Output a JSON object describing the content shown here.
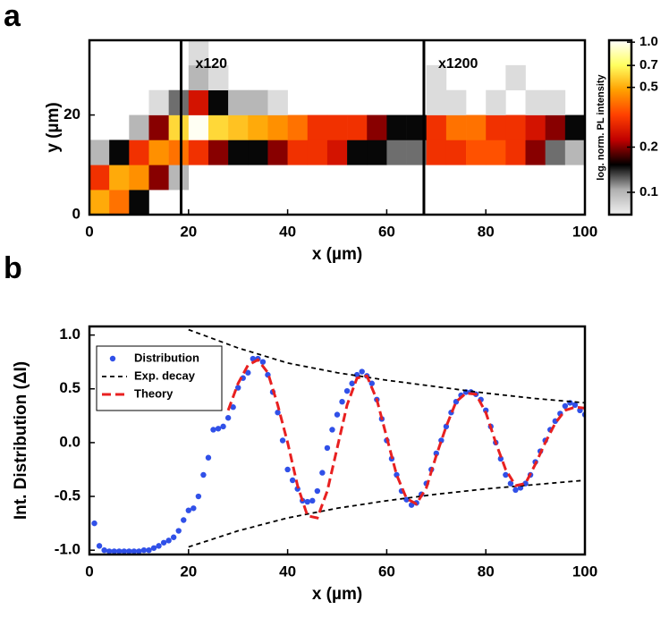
{
  "chart_data": [
    {
      "type": "heatmap",
      "panel": "a",
      "xlabel": "x (µm)",
      "ylabel": "y (µm)",
      "xlim": [
        0,
        100
      ],
      "ylim": [
        0,
        35
      ],
      "xticks": [
        0,
        20,
        40,
        60,
        80,
        100
      ],
      "yticks": [
        0,
        20
      ],
      "x": [
        2,
        6,
        10,
        14,
        18,
        22,
        26,
        30,
        34,
        38,
        42,
        46,
        50,
        54,
        58,
        62,
        66,
        70,
        74,
        78,
        82,
        86,
        90,
        94,
        98
      ],
      "y": [
        2.5,
        7.5,
        12.5,
        17.5,
        22.5,
        27.5,
        32.5
      ],
      "values": [
        [
          0.5,
          0.4,
          0.15,
          null,
          null,
          null,
          null,
          null,
          null,
          null,
          null,
          null,
          null,
          null,
          null,
          null,
          null,
          null,
          null,
          null,
          null,
          null,
          null,
          null,
          null
        ],
        [
          0.3,
          0.5,
          0.45,
          0.2,
          0.1,
          null,
          null,
          null,
          null,
          null,
          null,
          null,
          null,
          null,
          null,
          null,
          null,
          null,
          null,
          null,
          null,
          null,
          null,
          null,
          null
        ],
        [
          0.1,
          0.15,
          0.3,
          0.45,
          0.4,
          0.3,
          0.2,
          0.15,
          0.15,
          0.2,
          0.3,
          0.3,
          0.25,
          0.15,
          0.15,
          0.12,
          0.12,
          0.3,
          0.3,
          0.35,
          0.35,
          0.3,
          0.2,
          0.12,
          0.1
        ],
        [
          null,
          null,
          0.1,
          0.2,
          0.6,
          1.0,
          0.6,
          0.55,
          0.5,
          0.45,
          0.4,
          0.3,
          0.3,
          0.3,
          0.2,
          0.15,
          0.15,
          0.3,
          0.4,
          0.4,
          0.3,
          0.3,
          0.25,
          0.2,
          0.15
        ],
        [
          null,
          null,
          null,
          0.08,
          0.12,
          0.25,
          0.15,
          0.1,
          0.1,
          0.08,
          null,
          null,
          null,
          null,
          null,
          null,
          null,
          0.08,
          0.08,
          null,
          0.08,
          null,
          0.08,
          0.08,
          null
        ],
        [
          null,
          null,
          null,
          null,
          null,
          0.1,
          0.08,
          null,
          null,
          null,
          null,
          null,
          null,
          null,
          null,
          null,
          null,
          0.08,
          null,
          null,
          null,
          0.08,
          null,
          null,
          null
        ],
        [
          null,
          null,
          null,
          null,
          null,
          0.08,
          null,
          null,
          null,
          null,
          null,
          null,
          null,
          null,
          null,
          null,
          null,
          null,
          null,
          null,
          null,
          null,
          null,
          null,
          null
        ]
      ],
      "colorbar": {
        "label": "log. norm. PL intensity",
        "log": true,
        "clim": [
          0.071,
          1.03
        ],
        "ticks": [
          0.1,
          0.2,
          0.5,
          0.7,
          {
            "value": 1,
            "label": "1.0"
          }
        ],
        "colormap": [
          "#f0f0f0",
          "#b0b0b0",
          "#000000",
          "#c00000",
          "#ff4000",
          "#ffa000",
          "#ffff60",
          "#ffffff"
        ]
      },
      "annotations": [
        {
          "text": "x120",
          "x": 18.5
        },
        {
          "text": "x1200",
          "x": 67.5
        }
      ]
    },
    {
      "type": "line",
      "panel": "b",
      "xlabel": "x (µm)",
      "ylabel": "Int. Distribution (ΔI)",
      "xlim": [
        0,
        100
      ],
      "ylim": [
        -1.04,
        1.08
      ],
      "xticks": [
        0,
        20,
        40,
        60,
        80,
        100
      ],
      "yticks": [
        {
          "value": -1,
          "label": "-1.0"
        },
        -0.5,
        {
          "value": 0,
          "label": "0.0"
        },
        0.5,
        {
          "value": 1,
          "label": "1.0"
        }
      ],
      "legend": "upper left",
      "series": [
        {
          "name": "Distribution",
          "color": "#3050e8",
          "style": "markers",
          "x": [
            1,
            2,
            3,
            4,
            5,
            6,
            7,
            8,
            9,
            10,
            11,
            12,
            13,
            14,
            15,
            16,
            17,
            18,
            19,
            20,
            21,
            22,
            23,
            24,
            25,
            26,
            27,
            28,
            29,
            30,
            31,
            32,
            33,
            34,
            35,
            36,
            37,
            38,
            39,
            40,
            41,
            42,
            43,
            44,
            45,
            46,
            47,
            48,
            49,
            50,
            51,
            52,
            53,
            54,
            55,
            56,
            57,
            58,
            59,
            60,
            61,
            62,
            63,
            64,
            65,
            66,
            67,
            68,
            69,
            70,
            71,
            72,
            73,
            74,
            75,
            76,
            77,
            78,
            79,
            80,
            81,
            82,
            83,
            84,
            85,
            86,
            87,
            88,
            89,
            90,
            91,
            92,
            93,
            94,
            95,
            96,
            97,
            98,
            99,
            100
          ],
          "values": [
            -0.75,
            -0.96,
            -1.0,
            -1.01,
            -1.01,
            -1.01,
            -1.01,
            -1.01,
            -1.01,
            -1.01,
            -1.0,
            -1.0,
            -0.98,
            -0.96,
            -0.93,
            -0.91,
            -0.88,
            -0.82,
            -0.72,
            -0.63,
            -0.61,
            -0.5,
            -0.3,
            -0.14,
            0.12,
            0.13,
            0.15,
            0.23,
            0.33,
            0.51,
            0.6,
            0.65,
            0.78,
            0.78,
            0.75,
            0.63,
            0.47,
            0.28,
            0.02,
            -0.25,
            -0.35,
            -0.43,
            -0.54,
            -0.55,
            -0.54,
            -0.45,
            -0.28,
            -0.05,
            0.12,
            0.26,
            0.38,
            0.48,
            0.55,
            0.63,
            0.66,
            0.62,
            0.55,
            0.4,
            0.22,
            0.02,
            -0.15,
            -0.3,
            -0.45,
            -0.53,
            -0.58,
            -0.56,
            -0.48,
            -0.38,
            -0.25,
            -0.1,
            0.02,
            0.15,
            0.28,
            0.38,
            0.44,
            0.47,
            0.47,
            0.45,
            0.4,
            0.3,
            0.15,
            0.0,
            -0.15,
            -0.3,
            -0.38,
            -0.44,
            -0.42,
            -0.38,
            -0.3,
            -0.18,
            -0.08,
            0.02,
            0.12,
            0.2,
            0.27,
            0.34,
            0.37,
            0.35,
            0.3,
            0.26
          ]
        },
        {
          "name": "Exp. decay",
          "color": "#000000",
          "style": "dashed",
          "x": [
            20,
            30,
            40,
            50,
            60,
            70,
            80,
            90,
            100
          ],
          "values": [
            1.05,
            0.88,
            0.74,
            0.65,
            0.58,
            0.52,
            0.46,
            0.41,
            0.37
          ],
          "values_lower": [
            -0.97,
            -0.82,
            -0.7,
            -0.61,
            -0.54,
            -0.48,
            -0.43,
            -0.39,
            -0.35
          ]
        },
        {
          "name": "Theory",
          "color": "#e82020",
          "style": "dashed-thick",
          "x": [
            28,
            30,
            32,
            34,
            36,
            38,
            40,
            42,
            44,
            46,
            48,
            50,
            52,
            54,
            56,
            58,
            60,
            62,
            64,
            66,
            68,
            70,
            72,
            74,
            76,
            78,
            80,
            82,
            84,
            86,
            88,
            90,
            92,
            94,
            96,
            98,
            100
          ],
          "values": [
            0.3,
            0.55,
            0.72,
            0.77,
            0.65,
            0.35,
            0.0,
            -0.4,
            -0.68,
            -0.7,
            -0.45,
            -0.05,
            0.35,
            0.6,
            0.62,
            0.4,
            0.05,
            -0.3,
            -0.52,
            -0.57,
            -0.42,
            -0.12,
            0.15,
            0.38,
            0.46,
            0.45,
            0.28,
            0.0,
            -0.25,
            -0.4,
            -0.38,
            -0.2,
            0.0,
            0.18,
            0.3,
            0.33,
            0.32
          ]
        }
      ]
    }
  ]
}
